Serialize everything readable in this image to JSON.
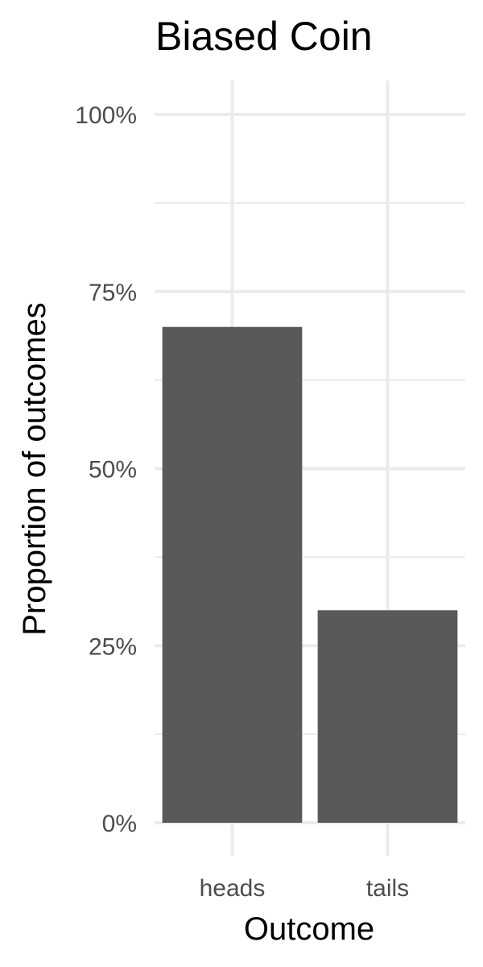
{
  "chart_data": {
    "type": "bar",
    "title": "Biased Coin",
    "xlabel": "Outcome",
    "ylabel": "Proportion of outcomes",
    "categories": [
      "heads",
      "tails"
    ],
    "values": [
      0.7,
      0.3
    ],
    "ylim": [
      0,
      1
    ],
    "y_ticks": [
      0,
      0.25,
      0.5,
      0.75,
      1
    ],
    "y_tick_labels": [
      "0%",
      "25%",
      "50%",
      "75%",
      "100%"
    ],
    "bar_color": "#595959",
    "grid": true,
    "legend": "none"
  }
}
